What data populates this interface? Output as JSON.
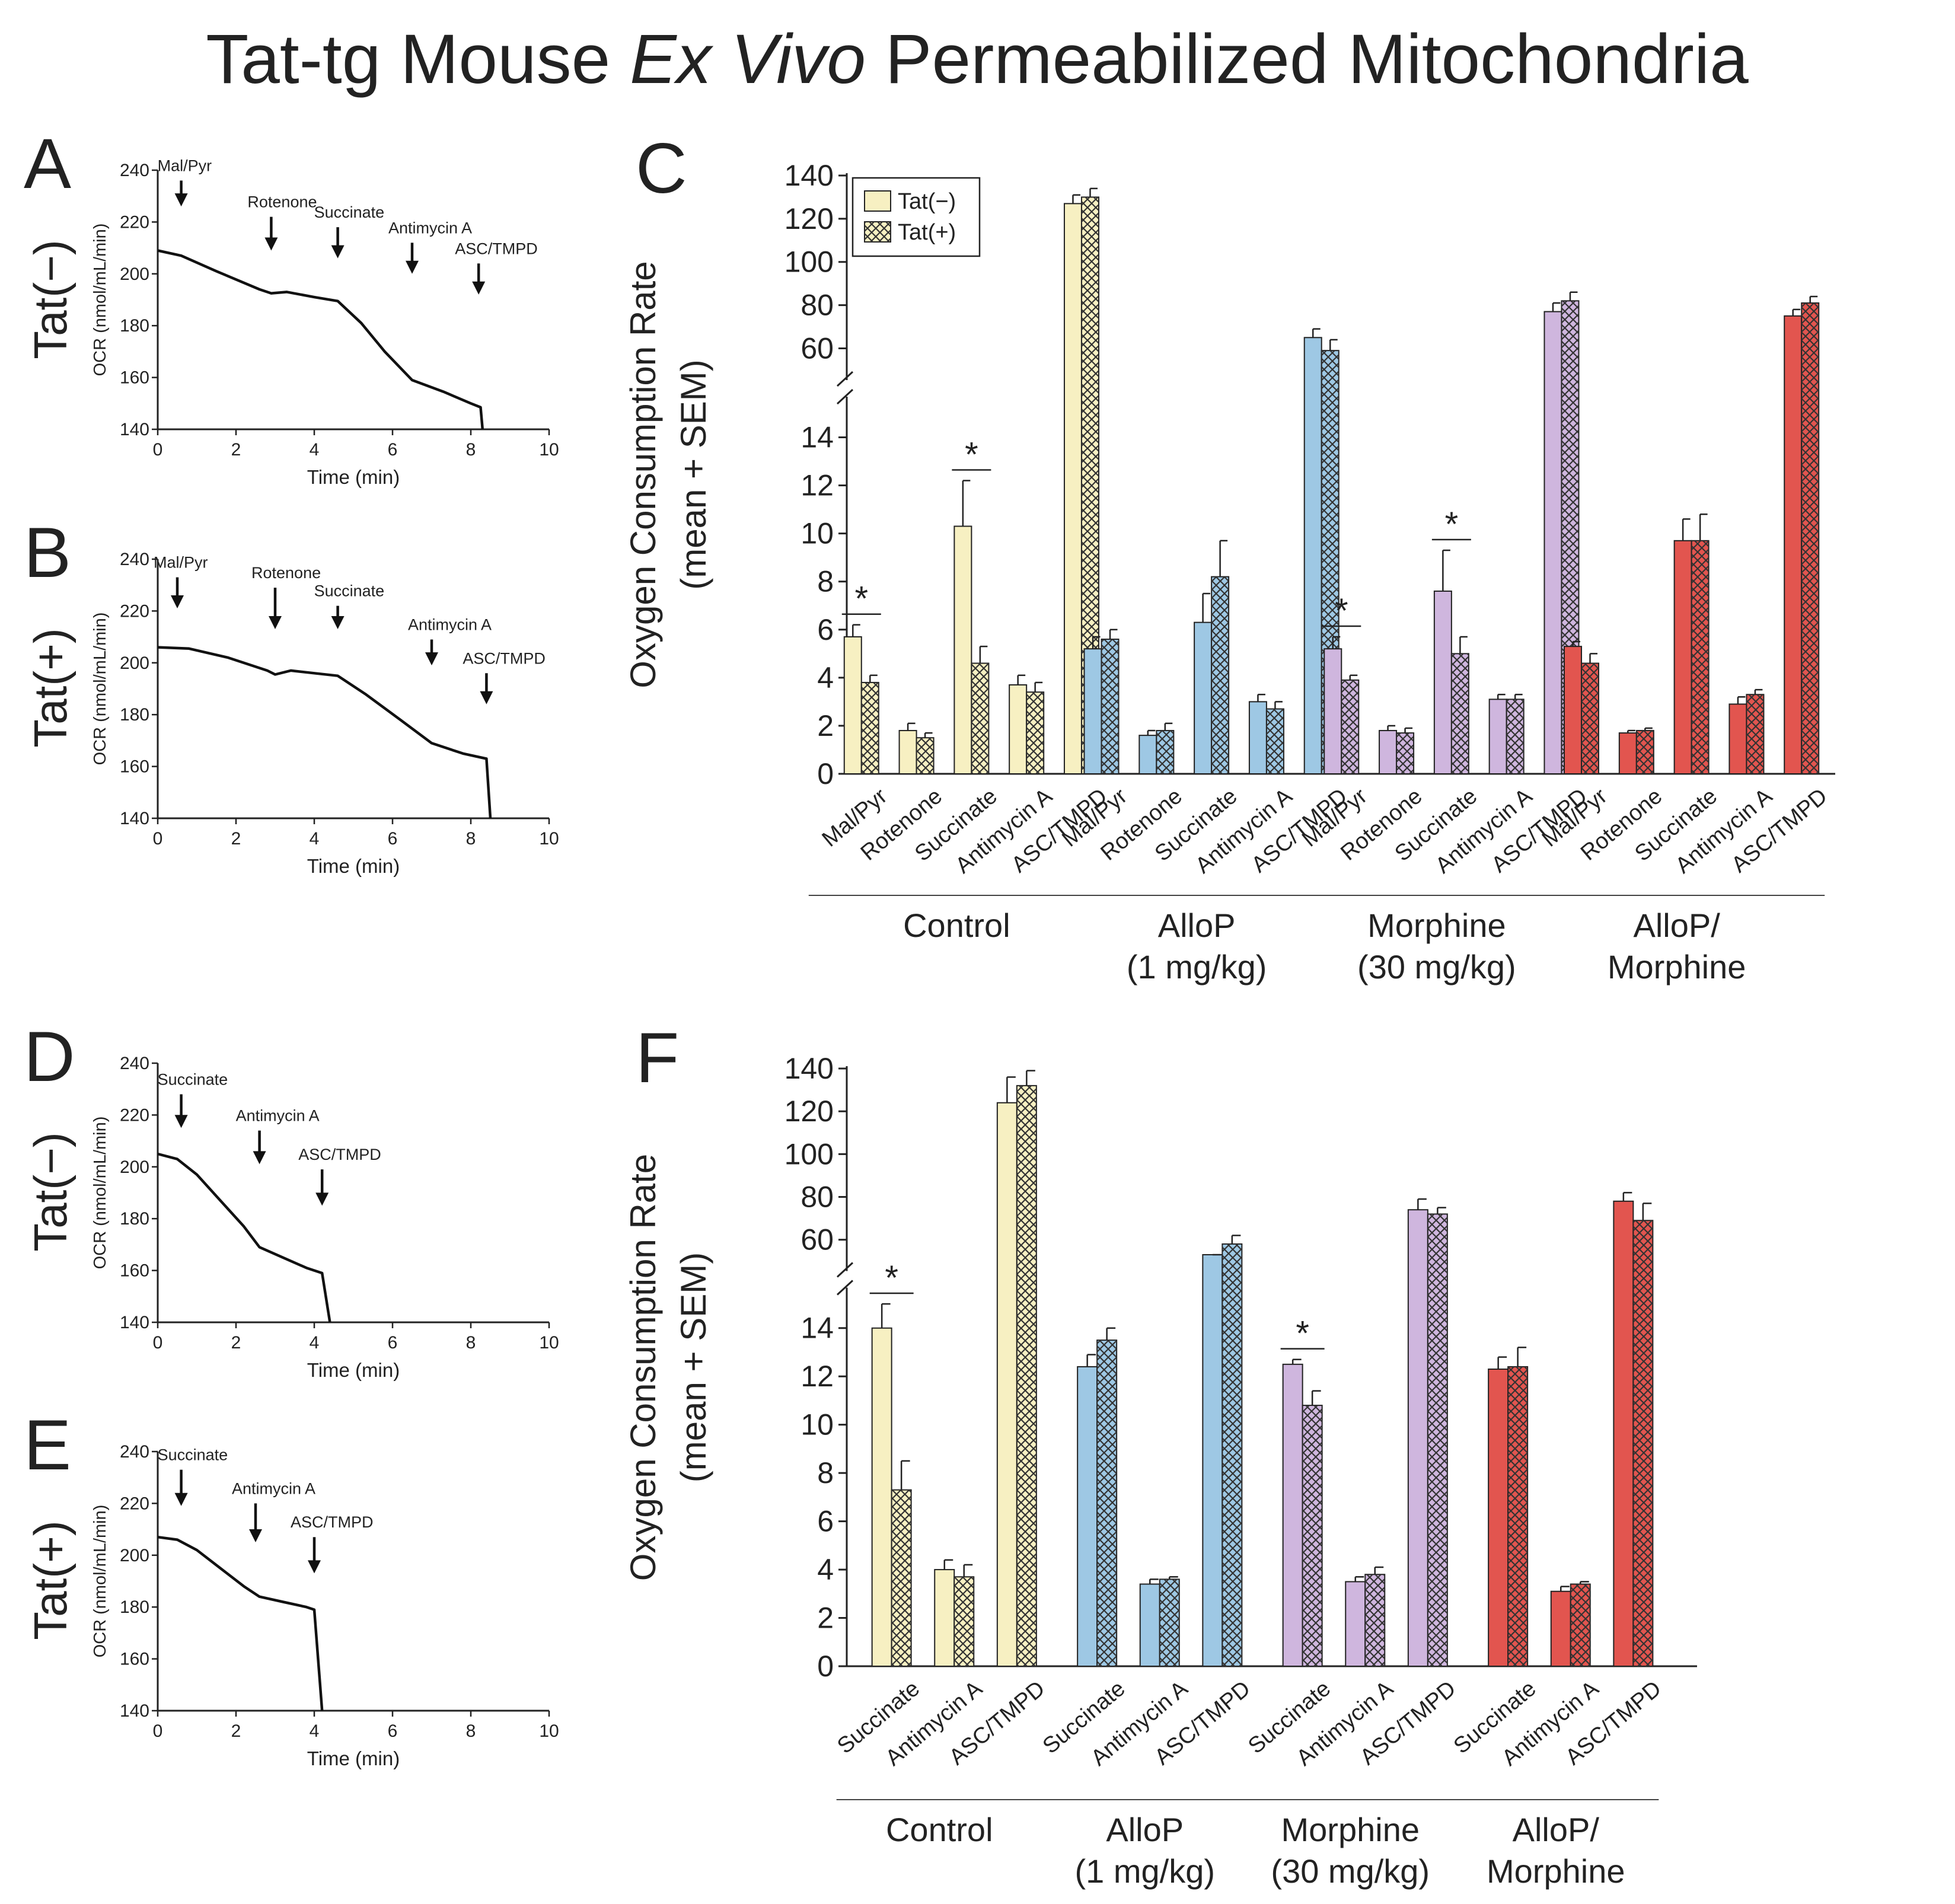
{
  "title": {
    "prefix": "Tat-tg Mouse ",
    "italic": "Ex Vivo",
    "suffix": " Permeabilized Mitochondria"
  },
  "colors": {
    "control": "#f7f0c2",
    "allop": "#9ec8e4",
    "morphine": "#cfb6de",
    "allop_morphine": "#e2554f",
    "hatch": "#333333",
    "trace": "#111111"
  },
  "legend": {
    "tat_minus": "Tat(−)",
    "tat_plus": "Tat(+)"
  },
  "chart_data": [
    {
      "panel": "A",
      "type": "line",
      "row_label": "Tat(−)",
      "ylabel": "OCR (nmol/mL/min)",
      "xlabel": "Time (min)",
      "xlim": [
        0,
        10
      ],
      "ylim": [
        140,
        240
      ],
      "xticks": [
        "0",
        "2",
        "4",
        "6",
        "8",
        "10"
      ],
      "yticks": [
        "140",
        "160",
        "180",
        "200",
        "220",
        "240"
      ],
      "trace": [
        [
          0,
          209
        ],
        [
          0.6,
          207
        ],
        [
          1.5,
          201
        ],
        [
          2.6,
          194
        ],
        [
          2.9,
          192.5
        ],
        [
          3.3,
          193
        ],
        [
          4.0,
          191
        ],
        [
          4.6,
          189.5
        ],
        [
          5.2,
          181
        ],
        [
          5.8,
          170
        ],
        [
          6.5,
          159
        ],
        [
          7.3,
          154.5
        ],
        [
          8.0,
          150
        ],
        [
          8.25,
          148.5
        ],
        [
          8.3,
          140
        ]
      ],
      "annotations": [
        {
          "label": "Mal/Pyr",
          "x": 0.6,
          "y_top": 236,
          "y_tip": 226
        },
        {
          "label": "Rotenone",
          "x": 2.9,
          "y_top": 222,
          "y_tip": 209
        },
        {
          "label": "Succinate",
          "x": 4.6,
          "y_top": 218,
          "y_tip": 206
        },
        {
          "label": "Antimycin A",
          "x": 6.5,
          "y_top": 212,
          "y_tip": 200
        },
        {
          "label": "ASC/TMPD",
          "x": 8.2,
          "y_top": 204,
          "y_tip": 192
        }
      ]
    },
    {
      "panel": "B",
      "type": "line",
      "row_label": "Tat(+)",
      "ylabel": "OCR (nmol/mL/min)",
      "xlabel": "Time (min)",
      "xlim": [
        0,
        10
      ],
      "ylim": [
        140,
        240
      ],
      "xticks": [
        "0",
        "2",
        "4",
        "6",
        "8",
        "10"
      ],
      "yticks": [
        "140",
        "160",
        "180",
        "200",
        "220",
        "240"
      ],
      "trace": [
        [
          0,
          206
        ],
        [
          0.8,
          205.5
        ],
        [
          1.8,
          202
        ],
        [
          2.8,
          197
        ],
        [
          3.0,
          195.5
        ],
        [
          3.4,
          197
        ],
        [
          4.0,
          196
        ],
        [
          4.6,
          195
        ],
        [
          5.3,
          188
        ],
        [
          6.2,
          178
        ],
        [
          7.0,
          169
        ],
        [
          7.8,
          165
        ],
        [
          8.4,
          163
        ],
        [
          8.5,
          140
        ]
      ],
      "annotations": [
        {
          "label": "Mal/Pyr",
          "x": 0.5,
          "y_top": 233,
          "y_tip": 221
        },
        {
          "label": "Rotenone",
          "x": 3.0,
          "y_top": 229,
          "y_tip": 213
        },
        {
          "label": "Succinate",
          "x": 4.6,
          "y_top": 222,
          "y_tip": 213
        },
        {
          "label": "Antimycin A",
          "x": 7.0,
          "y_top": 209,
          "y_tip": 199
        },
        {
          "label": "ASC/TMPD",
          "x": 8.4,
          "y_top": 196,
          "y_tip": 184
        }
      ]
    },
    {
      "panel": "D",
      "type": "line",
      "row_label": "Tat(−)",
      "ylabel": "OCR (nmol/mL/min)",
      "xlabel": "Time (min)",
      "xlim": [
        0,
        10
      ],
      "ylim": [
        140,
        240
      ],
      "xticks": [
        "0",
        "2",
        "4",
        "6",
        "8",
        "10"
      ],
      "yticks": [
        "140",
        "160",
        "180",
        "200",
        "220",
        "240"
      ],
      "trace": [
        [
          0,
          205
        ],
        [
          0.5,
          203
        ],
        [
          1.0,
          197
        ],
        [
          1.6,
          187
        ],
        [
          2.2,
          177
        ],
        [
          2.6,
          169
        ],
        [
          3.2,
          165
        ],
        [
          3.8,
          161
        ],
        [
          4.2,
          159
        ],
        [
          4.4,
          140
        ]
      ],
      "annotations": [
        {
          "label": "Succinate",
          "x": 0.6,
          "y_top": 228,
          "y_tip": 215
        },
        {
          "label": "Antimycin A",
          "x": 2.6,
          "y_top": 214,
          "y_tip": 201
        },
        {
          "label": "ASC/TMPD",
          "x": 4.2,
          "y_top": 199,
          "y_tip": 185
        }
      ]
    },
    {
      "panel": "E",
      "type": "line",
      "row_label": "Tat(+)",
      "ylabel": "OCR (nmol/mL/min)",
      "xlabel": "Time (min)",
      "xlim": [
        0,
        10
      ],
      "ylim": [
        140,
        240
      ],
      "xticks": [
        "0",
        "2",
        "4",
        "6",
        "8",
        "10"
      ],
      "yticks": [
        "140",
        "160",
        "180",
        "200",
        "220",
        "240"
      ],
      "trace": [
        [
          0,
          207
        ],
        [
          0.5,
          206
        ],
        [
          1.0,
          202
        ],
        [
          1.6,
          195
        ],
        [
          2.2,
          188
        ],
        [
          2.6,
          184
        ],
        [
          3.2,
          182
        ],
        [
          3.8,
          180
        ],
        [
          4.0,
          179
        ],
        [
          4.2,
          140
        ]
      ],
      "annotations": [
        {
          "label": "Succinate",
          "x": 0.6,
          "y_top": 233,
          "y_tip": 219
        },
        {
          "label": "Antimycin A",
          "x": 2.5,
          "y_top": 220,
          "y_tip": 205
        },
        {
          "label": "ASC/TMPD",
          "x": 4.0,
          "y_top": 207,
          "y_tip": 193
        }
      ]
    },
    {
      "panel": "C",
      "type": "bar",
      "ylabel_line1": "Oxygen Consumption Rate",
      "ylabel_line2": "(mean + SEM)",
      "ylim_lower": [
        0,
        15
      ],
      "ylim_upper": [
        53,
        140
      ],
      "yticks_lower": [
        "0",
        "2",
        "4",
        "6",
        "8",
        "10",
        "12",
        "14"
      ],
      "yticks_upper": [
        "60",
        "80",
        "100",
        "120",
        "140"
      ],
      "categories": [
        "Mal/Pyr",
        "Rotenone",
        "Succinate",
        "Antimycin A",
        "ASC/TMPD"
      ],
      "groups": [
        {
          "name": "Control",
          "color_key": "control",
          "tat_minus": [
            5.7,
            1.8,
            10.3,
            3.7,
            127
          ],
          "tat_minus_err": [
            0.5,
            0.3,
            1.9,
            0.4,
            4
          ],
          "tat_plus": [
            3.8,
            1.5,
            4.6,
            3.4,
            130
          ],
          "tat_plus_err": [
            0.3,
            0.2,
            0.7,
            0.4,
            4
          ],
          "stars": [
            0,
            2
          ]
        },
        {
          "name": "AlloP",
          "subname": "(1 mg/kg)",
          "color_key": "allop",
          "tat_minus": [
            5.2,
            1.6,
            6.3,
            3.0,
            65
          ],
          "tat_minus_err": [
            0.5,
            0.2,
            1.2,
            0.3,
            4
          ],
          "tat_plus": [
            5.6,
            1.8,
            8.2,
            2.7,
            59
          ],
          "tat_plus_err": [
            0.4,
            0.3,
            1.5,
            0.3,
            5
          ],
          "stars": []
        },
        {
          "name": "Morphine",
          "subname": "(30 mg/kg)",
          "color_key": "morphine",
          "tat_minus": [
            5.2,
            1.8,
            7.6,
            3.1,
            77
          ],
          "tat_minus_err": [
            0.5,
            0.2,
            1.7,
            0.2,
            4
          ],
          "tat_plus": [
            3.9,
            1.7,
            5.0,
            3.1,
            82
          ],
          "tat_plus_err": [
            0.2,
            0.2,
            0.7,
            0.2,
            4
          ],
          "stars": [
            0,
            2
          ]
        },
        {
          "name": "AlloP/",
          "subname": "Morphine",
          "color_key": "allop_morphine",
          "tat_minus": [
            5.3,
            1.7,
            9.7,
            2.9,
            75
          ],
          "tat_minus_err": [
            0.2,
            0.1,
            0.9,
            0.3,
            3
          ],
          "tat_plus": [
            4.6,
            1.8,
            9.7,
            3.3,
            81
          ],
          "tat_plus_err": [
            0.4,
            0.1,
            1.1,
            0.2,
            3
          ],
          "stars": []
        }
      ]
    },
    {
      "panel": "F",
      "type": "bar",
      "ylabel_line1": "Oxygen Consumption Rate",
      "ylabel_line2": "(mean + SEM)",
      "ylim_lower": [
        0,
        15
      ],
      "ylim_upper": [
        53,
        140
      ],
      "yticks_lower": [
        "0",
        "2",
        "4",
        "6",
        "8",
        "10",
        "12",
        "14"
      ],
      "yticks_upper": [
        "60",
        "80",
        "100",
        "120",
        "140"
      ],
      "categories": [
        "Succinate",
        "Antimycin A",
        "ASC/TMPD"
      ],
      "groups": [
        {
          "name": "Control",
          "color_key": "control",
          "tat_minus": [
            14.0,
            4.0,
            124
          ],
          "tat_minus_err": [
            1.0,
            0.4,
            12
          ],
          "tat_plus": [
            7.3,
            3.7,
            132
          ],
          "tat_plus_err": [
            1.2,
            0.5,
            7
          ],
          "stars": [
            0
          ]
        },
        {
          "name": "AlloP",
          "subname": "(1 mg/kg)",
          "color_key": "allop",
          "tat_minus": [
            12.4,
            3.4,
            48
          ],
          "tat_minus_err": [
            0.5,
            0.2,
            4
          ],
          "tat_plus": [
            13.5,
            3.6,
            58
          ],
          "tat_plus_err": [
            0.5,
            0.1,
            4
          ],
          "stars": []
        },
        {
          "name": "Morphine",
          "subname": "(30 mg/kg)",
          "color_key": "morphine",
          "tat_minus": [
            12.5,
            3.5,
            74
          ],
          "tat_minus_err": [
            0.2,
            0.2,
            5
          ],
          "tat_plus": [
            10.8,
            3.8,
            72
          ],
          "tat_plus_err": [
            0.6,
            0.3,
            3
          ],
          "stars": [
            0
          ]
        },
        {
          "name": "AlloP/",
          "subname": "Morphine",
          "color_key": "allop_morphine",
          "tat_minus": [
            12.3,
            3.1,
            78
          ],
          "tat_minus_err": [
            0.5,
            0.2,
            4
          ],
          "tat_plus": [
            12.4,
            3.4,
            69
          ],
          "tat_plus_err": [
            0.8,
            0.1,
            8
          ],
          "stars": []
        }
      ]
    }
  ]
}
